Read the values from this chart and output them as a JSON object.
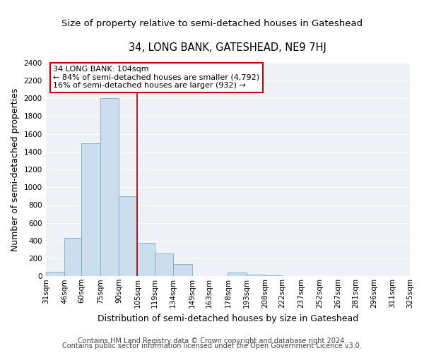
{
  "title": "34, LONG BANK, GATESHEAD, NE9 7HJ",
  "subtitle": "Size of property relative to semi-detached houses in Gateshead",
  "xlabel": "Distribution of semi-detached houses by size in Gateshead",
  "ylabel": "Number of semi-detached properties",
  "bin_labels": [
    "31sqm",
    "46sqm",
    "60sqm",
    "75sqm",
    "90sqm",
    "105sqm",
    "119sqm",
    "134sqm",
    "149sqm",
    "163sqm",
    "178sqm",
    "193sqm",
    "208sqm",
    "222sqm",
    "237sqm",
    "252sqm",
    "267sqm",
    "281sqm",
    "296sqm",
    "311sqm",
    "325sqm"
  ],
  "bin_edges": [
    31,
    46,
    60,
    75,
    90,
    105,
    119,
    134,
    149,
    163,
    178,
    193,
    208,
    222,
    237,
    252,
    267,
    281,
    296,
    311,
    325
  ],
  "bar_heights": [
    50,
    430,
    1490,
    2000,
    900,
    375,
    255,
    135,
    0,
    0,
    40,
    20,
    10,
    0,
    0,
    0,
    0,
    0,
    0,
    0
  ],
  "bar_color": "#ccdded",
  "bar_edge_color": "#7aaac8",
  "vline_x": 105,
  "vline_color": "#990000",
  "annotation_title": "34 LONG BANK: 104sqm",
  "annotation_line1": "← 84% of semi-detached houses are smaller (4,792)",
  "annotation_line2": "16% of semi-detached houses are larger (932) →",
  "annotation_box_color": "#cc0000",
  "ylim": [
    0,
    2400
  ],
  "yticks": [
    0,
    200,
    400,
    600,
    800,
    1000,
    1200,
    1400,
    1600,
    1800,
    2000,
    2200,
    2400
  ],
  "footer1": "Contains HM Land Registry data © Crown copyright and database right 2024.",
  "footer2": "Contains public sector information licensed under the Open Government Licence v3.0.",
  "bg_color": "#ffffff",
  "plot_bg_color": "#eef2f7",
  "grid_color": "#ffffff",
  "title_fontsize": 10.5,
  "subtitle_fontsize": 9.5,
  "label_fontsize": 9,
  "tick_fontsize": 7.5,
  "footer_fontsize": 7,
  "annotation_fontsize": 8
}
